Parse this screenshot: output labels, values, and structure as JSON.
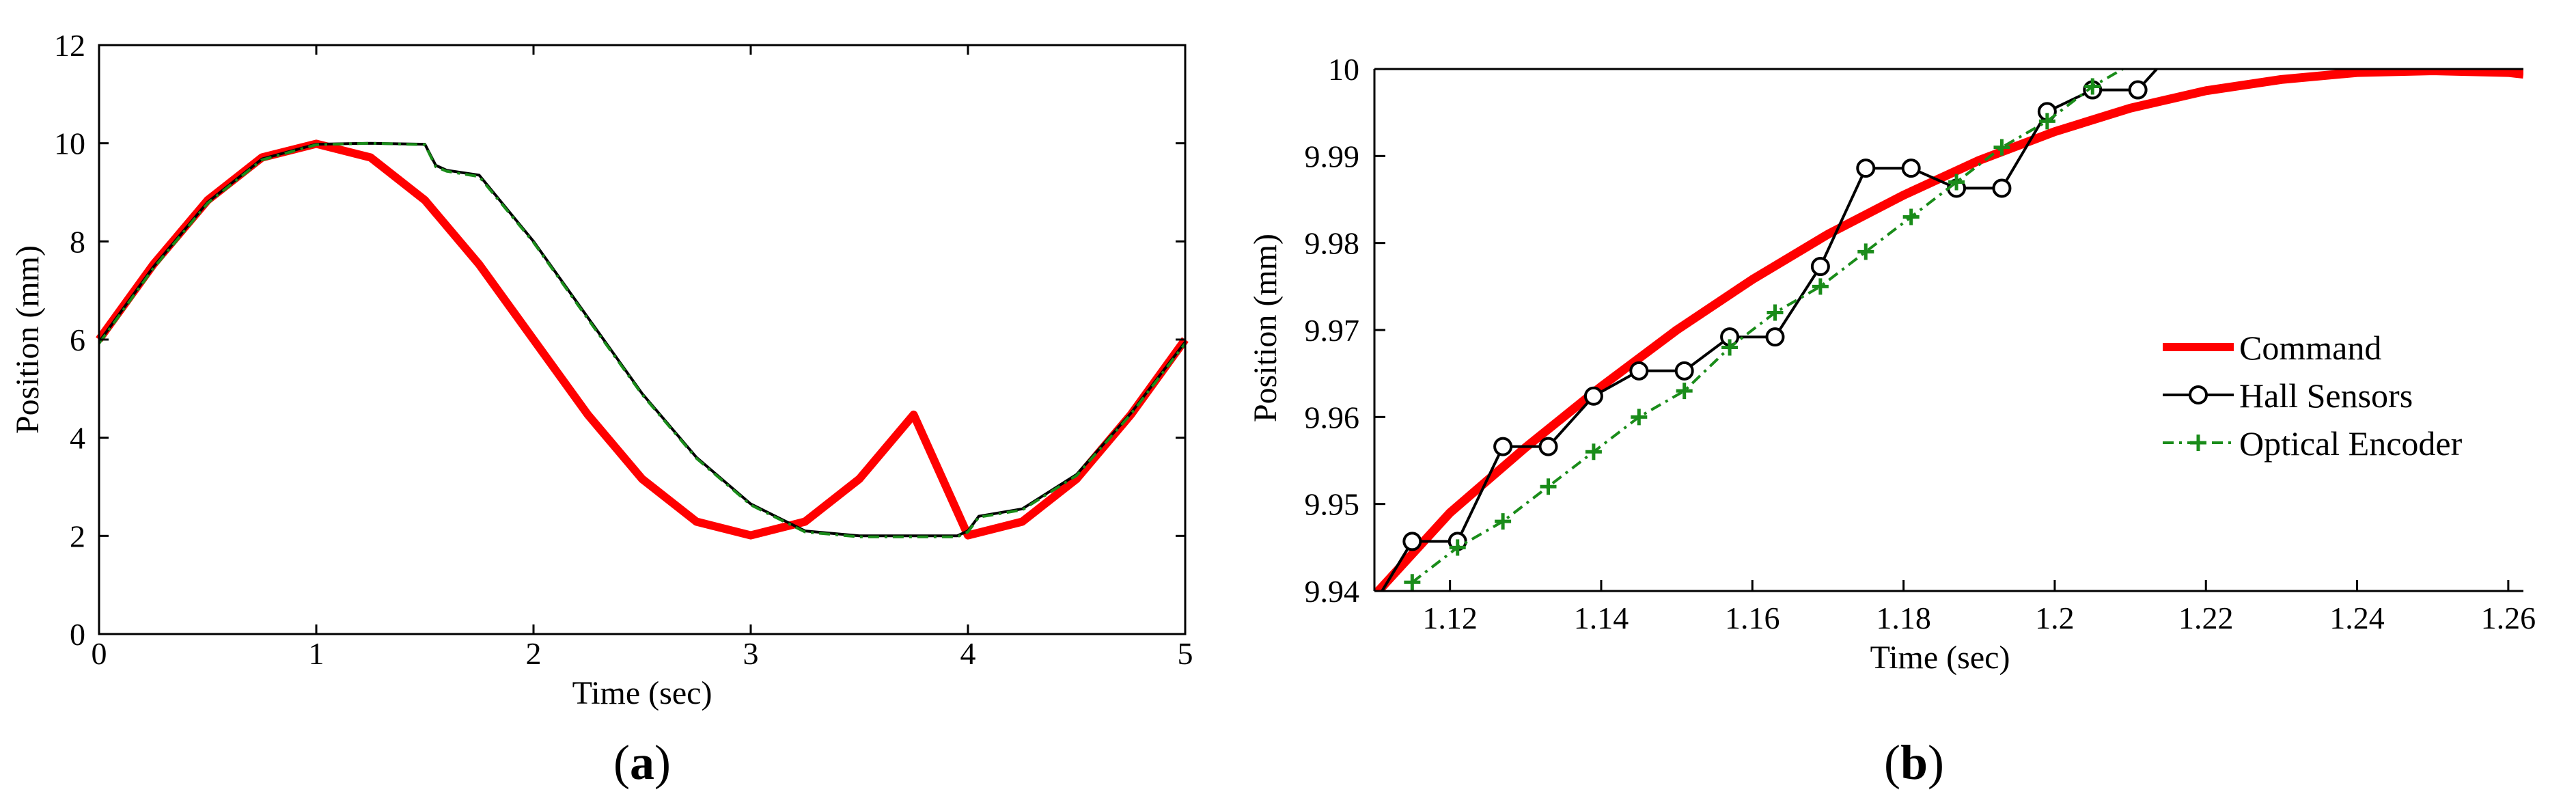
{
  "chart_data": [
    {
      "id": "a",
      "type": "line",
      "panel_label": "a",
      "xlabel": "Time (sec)",
      "ylabel": "Position (mm)",
      "xlim": [
        0,
        5
      ],
      "ylim": [
        0,
        12
      ],
      "xticks": [
        0,
        1,
        2,
        3,
        4,
        5
      ],
      "yticks": [
        0,
        2,
        4,
        6,
        8,
        10,
        12
      ],
      "grid": false,
      "series": [
        {
          "key": "command",
          "color": "#ff0000",
          "style": "solid-thick",
          "x": [
            0,
            0.25,
            0.5,
            0.75,
            1.0,
            1.25,
            1.5,
            1.75,
            2.0,
            2.25,
            2.5,
            2.75,
            3.0,
            3.25,
            3.5,
            3.75,
            4.0,
            4.25,
            4.5,
            4.75,
            5.0
          ],
          "y": [
            6.0,
            7.53,
            8.84,
            9.71,
            9.99,
            9.71,
            8.84,
            7.53,
            6.0,
            4.47,
            3.16,
            2.29,
            2.01,
            2.29,
            3.16,
            4.47,
            2.01,
            2.29,
            3.16,
            4.47,
            6.0
          ]
        },
        {
          "key": "hall",
          "color": "#000000",
          "style": "solid-thin",
          "x": [
            0,
            0.25,
            0.5,
            0.75,
            1.0,
            1.25,
            1.5,
            1.55,
            1.6,
            1.75,
            2.0,
            2.25,
            2.5,
            2.75,
            3.0,
            3.25,
            3.5,
            3.75,
            3.95,
            4.0,
            4.05,
            4.25,
            4.5,
            4.75,
            5.0
          ],
          "y": [
            5.95,
            7.48,
            8.8,
            9.68,
            9.98,
            10.0,
            9.98,
            9.55,
            9.45,
            9.35,
            8.0,
            6.45,
            4.9,
            3.6,
            2.65,
            2.1,
            2.0,
            2.0,
            2.0,
            2.1,
            2.4,
            2.55,
            3.25,
            4.5,
            5.95
          ]
        },
        {
          "key": "encoder",
          "color": "#1a8c1a",
          "style": "dash-dot-plus",
          "x": [
            0,
            0.25,
            0.5,
            0.75,
            1.0,
            1.25,
            1.5,
            1.55,
            1.6,
            1.75,
            2.0,
            2.25,
            2.5,
            2.75,
            3.0,
            3.25,
            3.5,
            3.75,
            3.95,
            4.0,
            4.05,
            4.25,
            4.5,
            4.75,
            5.0
          ],
          "y": [
            5.92,
            7.45,
            8.78,
            9.66,
            9.97,
            10.0,
            9.97,
            9.52,
            9.43,
            9.32,
            7.98,
            6.42,
            4.88,
            3.58,
            2.63,
            2.08,
            1.98,
            1.98,
            1.98,
            2.08,
            2.38,
            2.53,
            3.23,
            4.48,
            5.92
          ]
        }
      ]
    },
    {
      "id": "b",
      "type": "line",
      "panel_label": "b",
      "xlabel": "Time (sec)",
      "ylabel": "Position (mm)",
      "xlim": [
        1.11,
        1.262
      ],
      "ylim": [
        9.94,
        10.0
      ],
      "xticks": [
        1.12,
        1.14,
        1.16,
        1.18,
        1.2,
        1.22,
        1.24,
        1.26
      ],
      "xtick_labels": [
        "1.12",
        "1.14",
        "1.16",
        "1.18",
        "1.2",
        "1.22",
        "1.24",
        "1.26"
      ],
      "yticks": [
        9.94,
        9.95,
        9.96,
        9.97,
        9.98,
        9.99,
        10.0
      ],
      "ytick_labels": [
        "9.94",
        "9.95",
        "9.96",
        "9.97",
        "9.98",
        "9.99",
        "10"
      ],
      "grid": false,
      "legend": "right",
      "series": [
        {
          "key": "command",
          "name": "Command",
          "color": "#ff0000",
          "style": "solid-thick",
          "x": [
            1.11,
            1.12,
            1.13,
            1.14,
            1.15,
            1.16,
            1.17,
            1.18,
            1.19,
            1.2,
            1.21,
            1.22,
            1.23,
            1.24,
            1.25,
            1.26,
            1.262
          ],
          "y": [
            9.9395,
            9.949,
            9.9565,
            9.9635,
            9.97,
            9.9758,
            9.981,
            9.9855,
            9.9895,
            9.9928,
            9.9955,
            9.9975,
            9.9988,
            9.9996,
            9.9998,
            9.9996,
            9.9994
          ]
        },
        {
          "key": "hall",
          "name": "Hall Sensors",
          "color": "#000000",
          "style": "solid-circle",
          "x": [
            1.111,
            1.115,
            1.121,
            1.127,
            1.133,
            1.139,
            1.145,
            1.151,
            1.157,
            1.163,
            1.169,
            1.175,
            1.181,
            1.187,
            1.193,
            1.199,
            1.205,
            1.211,
            1.2135
          ],
          "y": [
            9.94,
            9.9457,
            9.9457,
            9.9566,
            9.9566,
            9.9624,
            9.9653,
            9.9653,
            9.9692,
            9.9692,
            9.9773,
            9.9886,
            9.9886,
            9.9863,
            9.9863,
            9.9951,
            9.9976,
            9.9976,
            10.0
          ]
        },
        {
          "key": "encoder",
          "name": "Optical Encoder",
          "color": "#1a8c1a",
          "style": "dash-dot-plus",
          "x": [
            1.115,
            1.121,
            1.127,
            1.133,
            1.139,
            1.145,
            1.151,
            1.157,
            1.163,
            1.169,
            1.175,
            1.181,
            1.187,
            1.193,
            1.199,
            1.205,
            1.209
          ],
          "y": [
            9.941,
            9.945,
            9.948,
            9.952,
            9.956,
            9.96,
            9.963,
            9.968,
            9.972,
            9.975,
            9.979,
            9.983,
            9.987,
            9.991,
            9.994,
            9.998,
            10.0
          ]
        }
      ]
    }
  ]
}
